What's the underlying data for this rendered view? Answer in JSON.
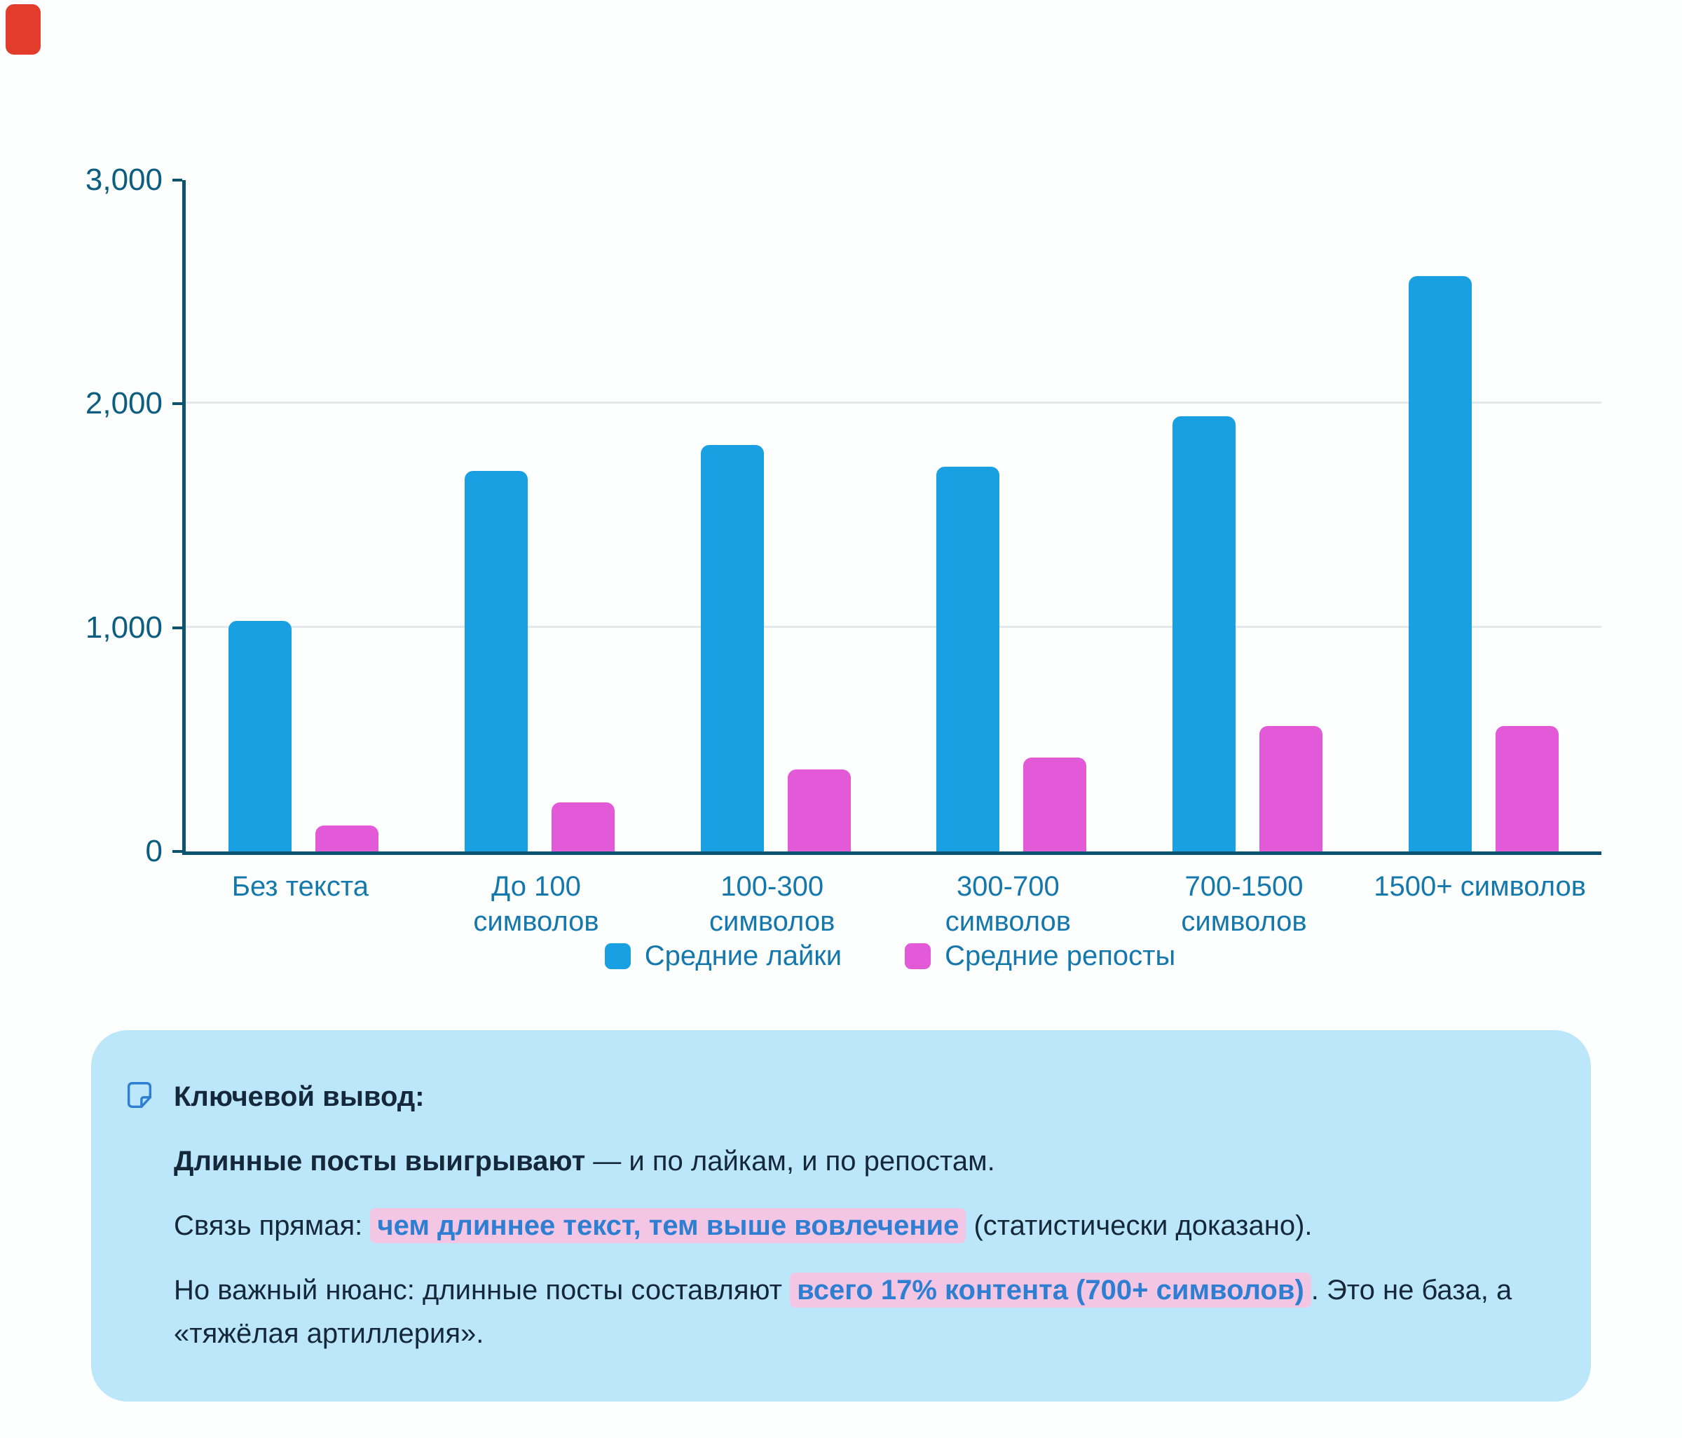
{
  "colors": {
    "likes_blue": "#18a0e3",
    "reposts_pink": "#e25ad7",
    "axis": "#0b536f",
    "tick_label": "#0c5e80",
    "category_label": "#1478ac",
    "gridline": "#e4e8ea",
    "callout_bg": "#bce7fb",
    "callout_text": "#14283a",
    "highlight_bg": "#f3c6e4",
    "highlight_text": "#2e7fd2",
    "corner_mark_red": "#e23c2c"
  },
  "chart_data": {
    "type": "bar",
    "title": "",
    "xlabel": "",
    "ylabel": "",
    "categories": [
      "Без текста",
      "До 100 символов",
      "100-300 символов",
      "300-700 символов",
      "700-1500 символов",
      "1500+ символов"
    ],
    "series": [
      {
        "key": "likes",
        "name": "Средние лайки",
        "color": "#18a0e3",
        "values": [
          1030,
          1700,
          1815,
          1720,
          1945,
          2570
        ]
      },
      {
        "key": "reposts",
        "name": "Средние репосты",
        "color": "#e25ad7",
        "values": [
          115,
          220,
          365,
          420,
          560,
          560
        ]
      }
    ],
    "ylim": [
      0,
      3000
    ],
    "yticks": [
      {
        "value": 0,
        "label": "0"
      },
      {
        "value": 1000,
        "label": "1,000"
      },
      {
        "value": 2000,
        "label": "2,000"
      },
      {
        "value": 3000,
        "label": "3,000"
      }
    ],
    "gridlines": [
      1000,
      2000
    ],
    "grid": "horizontal",
    "legend_position": "bottom"
  },
  "callout": {
    "heading": "Ключевой вывод:",
    "p1_bold": "Длинные посты выигрывают",
    "p1_rest": " — и по лайкам, и по репостам.",
    "p2_pre": "Связь прямая: ",
    "p2_highlight": "чем длиннее текст, тем выше вовлечение",
    "p2_post": " (статистически доказано).",
    "p3_pre": "Но важный нюанс: длинные посты составляют ",
    "p3_highlight": "всего 17% контента (700+ символов)",
    "p3_post": ". Это не база, а «тяжёлая артиллерия»."
  }
}
